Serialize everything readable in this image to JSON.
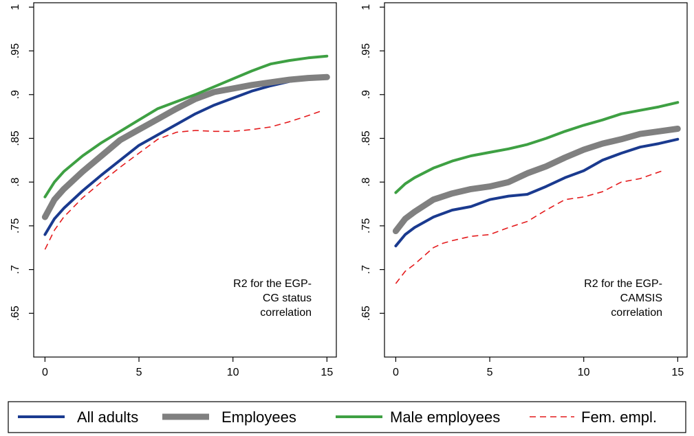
{
  "chart_data": [
    {
      "type": "line",
      "annotation": [
        "R2 for the EGP-",
        "CG status",
        "correlation"
      ],
      "xlim": [
        0,
        15
      ],
      "ylim": [
        0.6,
        1
      ],
      "x_ticks": [
        0,
        5,
        10,
        15
      ],
      "x_tick_labels": [
        "0",
        "5",
        "10",
        "15"
      ],
      "y_ticks": [
        0.65,
        0.7,
        0.75,
        0.8,
        0.85,
        0.9,
        0.95,
        1
      ],
      "y_tick_labels": [
        ".65",
        ".7",
        ".75",
        ".8",
        ".85",
        ".9",
        ".95",
        "1"
      ],
      "grid": false,
      "series": [
        {
          "name": "All adults",
          "color": "#1a3a8f",
          "x": [
            0,
            0.5,
            1,
            2,
            3,
            4,
            5,
            6,
            7,
            8,
            9,
            10,
            11,
            12,
            13,
            14,
            15
          ],
          "values": [
            0.74,
            0.758,
            0.77,
            0.79,
            0.808,
            0.825,
            0.842,
            0.854,
            0.866,
            0.878,
            0.888,
            0.896,
            0.904,
            0.91,
            0.915,
            0.918,
            0.92
          ]
        },
        {
          "name": "Employees",
          "color": "#808080",
          "x": [
            0,
            0.5,
            1,
            2,
            3,
            4,
            5,
            6,
            7,
            8,
            9,
            10,
            11,
            12,
            13,
            14,
            15
          ],
          "values": [
            0.76,
            0.78,
            0.792,
            0.812,
            0.83,
            0.848,
            0.86,
            0.872,
            0.884,
            0.895,
            0.903,
            0.907,
            0.911,
            0.914,
            0.917,
            0.919,
            0.92
          ]
        },
        {
          "name": "Male employees",
          "color": "#3ea043",
          "x": [
            0,
            0.5,
            1,
            2,
            3,
            4,
            5,
            6,
            7,
            8,
            9,
            10,
            11,
            12,
            13,
            14,
            15
          ],
          "values": [
            0.783,
            0.8,
            0.812,
            0.83,
            0.845,
            0.858,
            0.871,
            0.884,
            0.892,
            0.9,
            0.909,
            0.918,
            0.927,
            0.935,
            0.939,
            0.942,
            0.944
          ]
        },
        {
          "name": "Fem. empl.",
          "color": "#e41a1c",
          "x": [
            0,
            0.5,
            1,
            2,
            3,
            4,
            5,
            6,
            7,
            8,
            9,
            10,
            11,
            12,
            13,
            14,
            14.8
          ],
          "values": [
            0.723,
            0.745,
            0.76,
            0.782,
            0.8,
            0.817,
            0.833,
            0.849,
            0.857,
            0.859,
            0.858,
            0.858,
            0.86,
            0.863,
            0.869,
            0.876,
            0.882
          ]
        }
      ]
    },
    {
      "type": "line",
      "annotation": [
        "R2 for the EGP-",
        "CAMSIS",
        "correlation"
      ],
      "xlim": [
        0,
        15
      ],
      "ylim": [
        0.6,
        1
      ],
      "x_ticks": [
        0,
        5,
        10,
        15
      ],
      "x_tick_labels": [
        "0",
        "5",
        "10",
        "15"
      ],
      "y_ticks": [
        0.65,
        0.7,
        0.75,
        0.8,
        0.85,
        0.9,
        0.95,
        1
      ],
      "y_tick_labels": [
        ".65",
        ".7",
        ".75",
        ".8",
        ".85",
        ".9",
        ".95",
        "1"
      ],
      "grid": false,
      "series": [
        {
          "name": "All adults",
          "color": "#1a3a8f",
          "x": [
            0,
            0.5,
            1,
            2,
            3,
            4,
            5,
            6,
            7,
            8,
            9,
            10,
            11,
            12,
            13,
            14,
            15
          ],
          "values": [
            0.727,
            0.74,
            0.748,
            0.76,
            0.768,
            0.772,
            0.78,
            0.784,
            0.786,
            0.795,
            0.805,
            0.813,
            0.825,
            0.833,
            0.84,
            0.844,
            0.849
          ]
        },
        {
          "name": "Employees",
          "color": "#808080",
          "x": [
            0,
            0.5,
            1,
            2,
            3,
            4,
            5,
            6,
            7,
            8,
            9,
            10,
            11,
            12,
            13,
            14,
            15
          ],
          "values": [
            0.744,
            0.758,
            0.766,
            0.78,
            0.787,
            0.792,
            0.795,
            0.8,
            0.81,
            0.818,
            0.828,
            0.837,
            0.844,
            0.849,
            0.855,
            0.858,
            0.861
          ]
        },
        {
          "name": "Male employees",
          "color": "#3ea043",
          "x": [
            0,
            0.5,
            1,
            2,
            3,
            4,
            5,
            6,
            7,
            8,
            9,
            10,
            11,
            12,
            13,
            14,
            15
          ],
          "values": [
            0.788,
            0.798,
            0.805,
            0.816,
            0.824,
            0.83,
            0.834,
            0.838,
            0.843,
            0.85,
            0.858,
            0.865,
            0.871,
            0.878,
            0.882,
            0.886,
            0.891
          ]
        },
        {
          "name": "Fem. empl.",
          "color": "#e41a1c",
          "x": [
            0,
            0.5,
            1,
            2,
            2.5,
            3,
            4,
            5,
            6,
            7,
            8,
            9,
            10,
            11,
            12,
            13,
            14.2
          ],
          "values": [
            0.684,
            0.698,
            0.706,
            0.725,
            0.73,
            0.733,
            0.738,
            0.74,
            0.748,
            0.755,
            0.768,
            0.78,
            0.783,
            0.789,
            0.8,
            0.804,
            0.813
          ]
        }
      ]
    }
  ],
  "legend": {
    "placement": "bottom",
    "items": [
      {
        "label": "All adults",
        "color": "#1a3a8f",
        "style": "solid-medium"
      },
      {
        "label": "Employees",
        "color": "#808080",
        "style": "solid-thick"
      },
      {
        "label": "Male employees",
        "color": "#3ea043",
        "style": "solid-medium"
      },
      {
        "label": "Fem. empl.",
        "color": "#e41a1c",
        "style": "dashed-thin"
      }
    ]
  }
}
